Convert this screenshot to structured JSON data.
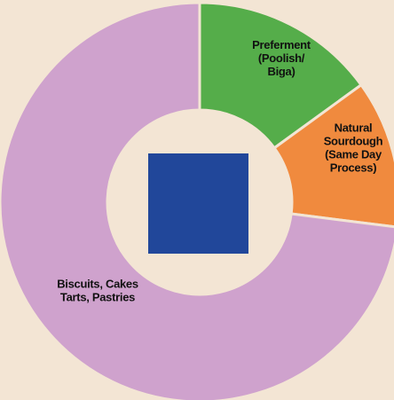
{
  "chart_data": {
    "type": "pie",
    "style": "donut",
    "labels": [
      [
        "Preferment",
        "(Poolish/",
        "Biga)"
      ],
      [
        "Natural",
        "Sourdough",
        "(Same Day",
        "Process)"
      ],
      [
        "Biscuits, Cakes",
        "Tarts, Pastries"
      ]
    ],
    "values": [
      15,
      12,
      73
    ],
    "colors": [
      "#55ad4a",
      "#f08a3e",
      "#cfa2cd"
    ],
    "center_square_color": "#21479a",
    "background": "#f3e5d4",
    "edge_color": "#f3e5d4",
    "legend": "none"
  }
}
